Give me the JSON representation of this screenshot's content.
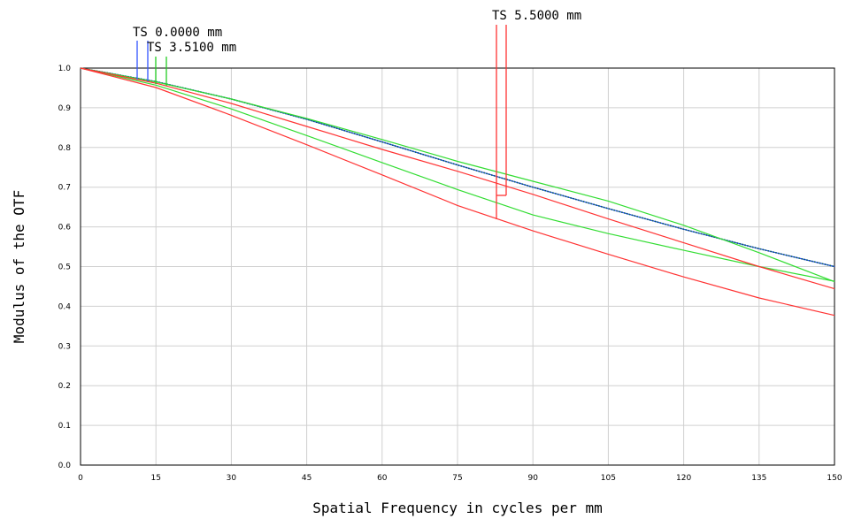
{
  "chart_data": {
    "type": "line",
    "xlabel": "Spatial Frequency in cycles per mm",
    "ylabel": "Modulus of the OTF",
    "xlim": [
      0,
      150
    ],
    "ylim": [
      0,
      1.0
    ],
    "x_ticks": [
      0,
      15,
      30,
      45,
      60,
      75,
      90,
      105,
      120,
      135,
      150
    ],
    "y_ticks": [
      0.0,
      0.1,
      0.2,
      0.3,
      0.4,
      0.5,
      0.6,
      0.7,
      0.8,
      0.9,
      1.0
    ],
    "x_tick_labels": [
      "0",
      "15",
      "30",
      "45",
      "60",
      "75",
      "90",
      "105",
      "120",
      "135",
      "150"
    ],
    "y_tick_labels": [
      "0.0",
      "0.1",
      "0.2",
      "0.3",
      "0.4",
      "0.5",
      "0.6",
      "0.7",
      "0.8",
      "0.9",
      "1.0"
    ],
    "grid": true,
    "annotations": [
      {
        "text": "TS 0.0000 mm",
        "color": "#3355ff"
      },
      {
        "text": "TS 3.5100 mm",
        "color": "#22cc22"
      },
      {
        "text": "TS 5.5000 mm",
        "color": "#ff3333"
      }
    ],
    "series": [
      {
        "color": "#2244ff",
        "style": "solid",
        "x": [
          0,
          15,
          30,
          45,
          60,
          75,
          90,
          105,
          120,
          135,
          150
        ],
        "y": [
          1.0,
          0.966,
          0.922,
          0.871,
          0.814,
          0.756,
          0.7,
          0.646,
          0.594,
          0.545,
          0.5
        ]
      },
      {
        "color": "#116655",
        "style": "dotted",
        "x": [
          0,
          15,
          30,
          45,
          60,
          75,
          90,
          105,
          120,
          135,
          150
        ],
        "y": [
          1.0,
          0.966,
          0.922,
          0.871,
          0.814,
          0.756,
          0.7,
          0.646,
          0.594,
          0.545,
          0.5
        ]
      },
      {
        "color": "#33dd33",
        "style": "solid",
        "x": [
          0,
          15,
          30,
          45,
          60,
          75,
          90,
          105,
          120,
          135,
          150
        ],
        "y": [
          1.0,
          0.965,
          0.922,
          0.873,
          0.82,
          0.765,
          0.715,
          0.665,
          0.604,
          0.535,
          0.462
        ]
      },
      {
        "color": "#33dd33",
        "style": "solid",
        "x": [
          0,
          15,
          30,
          45,
          60,
          75,
          90,
          105,
          120,
          135,
          150
        ],
        "y": [
          1.0,
          0.957,
          0.897,
          0.83,
          0.762,
          0.694,
          0.63,
          0.583,
          0.541,
          0.5,
          0.463
        ]
      },
      {
        "color": "#ff3333",
        "style": "solid",
        "x": [
          0,
          15,
          30,
          45,
          60,
          75,
          90,
          105,
          120,
          135,
          150
        ],
        "y": [
          1.0,
          0.962,
          0.911,
          0.853,
          0.795,
          0.74,
          0.682,
          0.62,
          0.56,
          0.5,
          0.444
        ]
      },
      {
        "color": "#ff3333",
        "style": "solid",
        "x": [
          0,
          15,
          30,
          45,
          60,
          75,
          90,
          105,
          120,
          135,
          150
        ],
        "y": [
          1.0,
          0.951,
          0.881,
          0.807,
          0.731,
          0.654,
          0.59,
          0.531,
          0.474,
          0.421,
          0.377
        ]
      }
    ]
  }
}
